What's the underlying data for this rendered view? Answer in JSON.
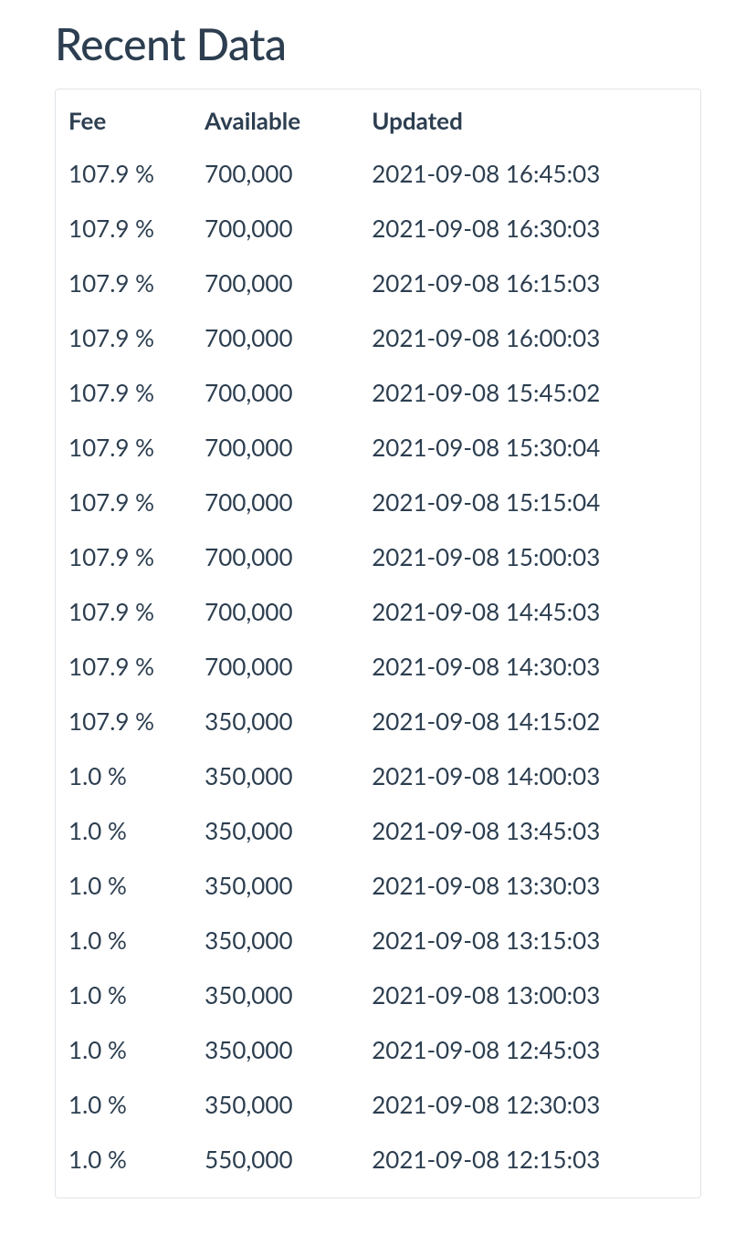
{
  "title": "Recent Data",
  "table": {
    "columns": [
      "Fee",
      "Available",
      "Updated"
    ],
    "rows": [
      [
        "107.9 %",
        "700,000",
        "2021-09-08 16:45:03"
      ],
      [
        "107.9 %",
        "700,000",
        "2021-09-08 16:30:03"
      ],
      [
        "107.9 %",
        "700,000",
        "2021-09-08 16:15:03"
      ],
      [
        "107.9 %",
        "700,000",
        "2021-09-08 16:00:03"
      ],
      [
        "107.9 %",
        "700,000",
        "2021-09-08 15:45:02"
      ],
      [
        "107.9 %",
        "700,000",
        "2021-09-08 15:30:04"
      ],
      [
        "107.9 %",
        "700,000",
        "2021-09-08 15:15:04"
      ],
      [
        "107.9 %",
        "700,000",
        "2021-09-08 15:00:03"
      ],
      [
        "107.9 %",
        "700,000",
        "2021-09-08 14:45:03"
      ],
      [
        "107.9 %",
        "700,000",
        "2021-09-08 14:30:03"
      ],
      [
        "107.9 %",
        "350,000",
        "2021-09-08 14:15:02"
      ],
      [
        "1.0 %",
        "350,000",
        "2021-09-08 14:00:03"
      ],
      [
        "1.0 %",
        "350,000",
        "2021-09-08 13:45:03"
      ],
      [
        "1.0 %",
        "350,000",
        "2021-09-08 13:30:03"
      ],
      [
        "1.0 %",
        "350,000",
        "2021-09-08 13:15:03"
      ],
      [
        "1.0 %",
        "350,000",
        "2021-09-08 13:00:03"
      ],
      [
        "1.0 %",
        "350,000",
        "2021-09-08 12:45:03"
      ],
      [
        "1.0 %",
        "350,000",
        "2021-09-08 12:30:03"
      ],
      [
        "1.0 %",
        "550,000",
        "2021-09-08 12:15:03"
      ]
    ]
  },
  "styling": {
    "text_color": "#2c3e50",
    "border_color": "#e0e4e8",
    "background_color": "#ffffff",
    "title_fontsize": 48,
    "cell_fontsize": 26,
    "header_fontweight": 700,
    "body_fontweight": 400,
    "column_widths_pct": [
      22,
      27,
      51
    ]
  }
}
